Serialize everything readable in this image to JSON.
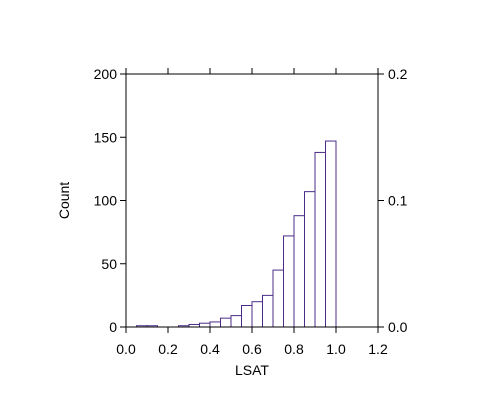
{
  "chart_data": {
    "type": "bar",
    "title": "",
    "xlabel": "LSAT",
    "ylabel": "Count",
    "xlim": [
      0.0,
      1.2
    ],
    "ylim": [
      0,
      200
    ],
    "y2lim": [
      0.0,
      0.2
    ],
    "bin_width": 0.05,
    "bins": [
      {
        "x0": 0.0,
        "x1": 0.05,
        "count": 0
      },
      {
        "x0": 0.05,
        "x1": 0.1,
        "count": 1
      },
      {
        "x0": 0.1,
        "x1": 0.15,
        "count": 1
      },
      {
        "x0": 0.15,
        "x1": 0.2,
        "count": 0
      },
      {
        "x0": 0.2,
        "x1": 0.25,
        "count": 0
      },
      {
        "x0": 0.25,
        "x1": 0.3,
        "count": 1
      },
      {
        "x0": 0.3,
        "x1": 0.35,
        "count": 2
      },
      {
        "x0": 0.35,
        "x1": 0.4,
        "count": 3
      },
      {
        "x0": 0.4,
        "x1": 0.45,
        "count": 4
      },
      {
        "x0": 0.45,
        "x1": 0.5,
        "count": 7
      },
      {
        "x0": 0.5,
        "x1": 0.55,
        "count": 9
      },
      {
        "x0": 0.55,
        "x1": 0.6,
        "count": 17
      },
      {
        "x0": 0.6,
        "x1": 0.65,
        "count": 20
      },
      {
        "x0": 0.65,
        "x1": 0.7,
        "count": 25
      },
      {
        "x0": 0.7,
        "x1": 0.75,
        "count": 45
      },
      {
        "x0": 0.75,
        "x1": 0.8,
        "count": 72
      },
      {
        "x0": 0.8,
        "x1": 0.85,
        "count": 88
      },
      {
        "x0": 0.85,
        "x1": 0.9,
        "count": 107
      },
      {
        "x0": 0.9,
        "x1": 0.95,
        "count": 138
      },
      {
        "x0": 0.95,
        "x1": 1.0,
        "count": 147
      }
    ],
    "x_ticks": [
      "0.0",
      "0.2",
      "0.4",
      "0.6",
      "0.8",
      "1.0",
      "1.2"
    ],
    "y_ticks": [
      "0",
      "50",
      "100",
      "150",
      "200"
    ],
    "y2_ticks": [
      "0.0",
      "0.1",
      "0.2"
    ],
    "grid": false,
    "colors": {
      "bar_edge": "#4b2c8a",
      "bar_fill": "#ffffff",
      "axis": "#000000"
    }
  }
}
